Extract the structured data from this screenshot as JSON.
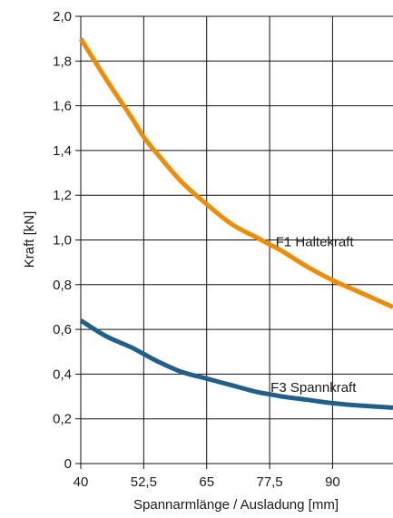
{
  "chart_data": {
    "type": "line",
    "xlabel": "Spannarmlänge / Ausladung [mm]",
    "ylabel": "Kraft [kN]",
    "xlim": [
      40,
      102
    ],
    "ylim": [
      0,
      2.0
    ],
    "x_ticks": [
      40,
      52.5,
      65,
      77.5,
      90
    ],
    "x_tick_labels": [
      "40",
      "52,5",
      "65",
      "77,5",
      "90"
    ],
    "y_ticks": [
      0,
      0.2,
      0.4,
      0.6,
      0.8,
      1.0,
      1.2,
      1.4,
      1.6,
      1.8,
      2.0
    ],
    "y_tick_labels": [
      "0",
      "0,2",
      "0,4",
      "0,6",
      "0,8",
      "1,0",
      "1,2",
      "1,4",
      "1,6",
      "1,8",
      "2,0"
    ],
    "grid": true,
    "series": [
      {
        "name": "F1 Haltekraft",
        "color": "#f08c00",
        "x": [
          40,
          45,
          50,
          52.5,
          55,
          60,
          65,
          70,
          75,
          77.5,
          80,
          85,
          90,
          95,
          102
        ],
        "y": [
          1.9,
          1.72,
          1.55,
          1.46,
          1.39,
          1.26,
          1.16,
          1.07,
          1.01,
          0.98,
          0.95,
          0.88,
          0.82,
          0.77,
          0.7
        ]
      },
      {
        "name": "F3 Spannkraft",
        "color": "#1f5f8b",
        "x": [
          40,
          45,
          50,
          52.5,
          55,
          60,
          65,
          70,
          75,
          77.5,
          80,
          85,
          90,
          95,
          102
        ],
        "y": [
          0.64,
          0.57,
          0.52,
          0.49,
          0.46,
          0.41,
          0.38,
          0.35,
          0.32,
          0.31,
          0.3,
          0.285,
          0.27,
          0.26,
          0.25
        ]
      }
    ]
  }
}
